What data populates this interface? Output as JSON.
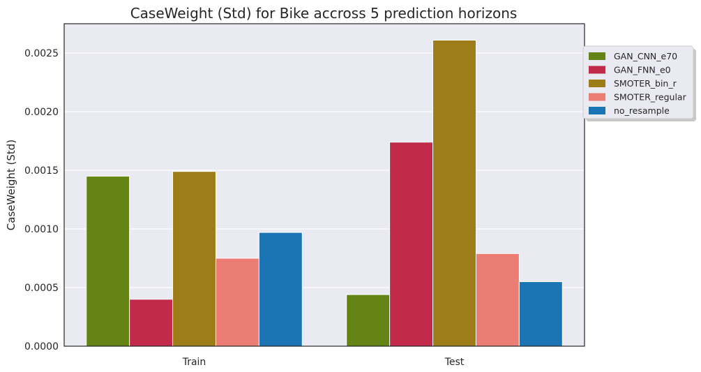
{
  "chart_data": {
    "type": "bar",
    "title": "CaseWeight (Std) for Bike accross 5 prediction horizons",
    "xlabel": "",
    "ylabel": "CaseWeight (Std)",
    "categories": [
      "Train",
      "Test"
    ],
    "series": [
      {
        "name": "GAN_CNN_e70",
        "color": "#648416",
        "values": [
          0.00145,
          0.00044
        ]
      },
      {
        "name": "GAN_FNN_e0",
        "color": "#c22a4b",
        "values": [
          0.0004,
          0.00174
        ]
      },
      {
        "name": "SMOTER_bin_r",
        "color": "#9c7d17",
        "values": [
          0.00149,
          0.00261
        ]
      },
      {
        "name": "SMOTER_regular",
        "color": "#ec7d74",
        "values": [
          0.00075,
          0.00079
        ]
      },
      {
        "name": "no_resample",
        "color": "#1b75b5",
        "values": [
          0.00097,
          0.00055
        ]
      }
    ],
    "yticks": [
      "0.0000",
      "0.0005",
      "0.0010",
      "0.0015",
      "0.0020",
      "0.0025"
    ],
    "ylim": [
      0,
      0.00275
    ],
    "grid": true,
    "legend_position": "top-right"
  }
}
